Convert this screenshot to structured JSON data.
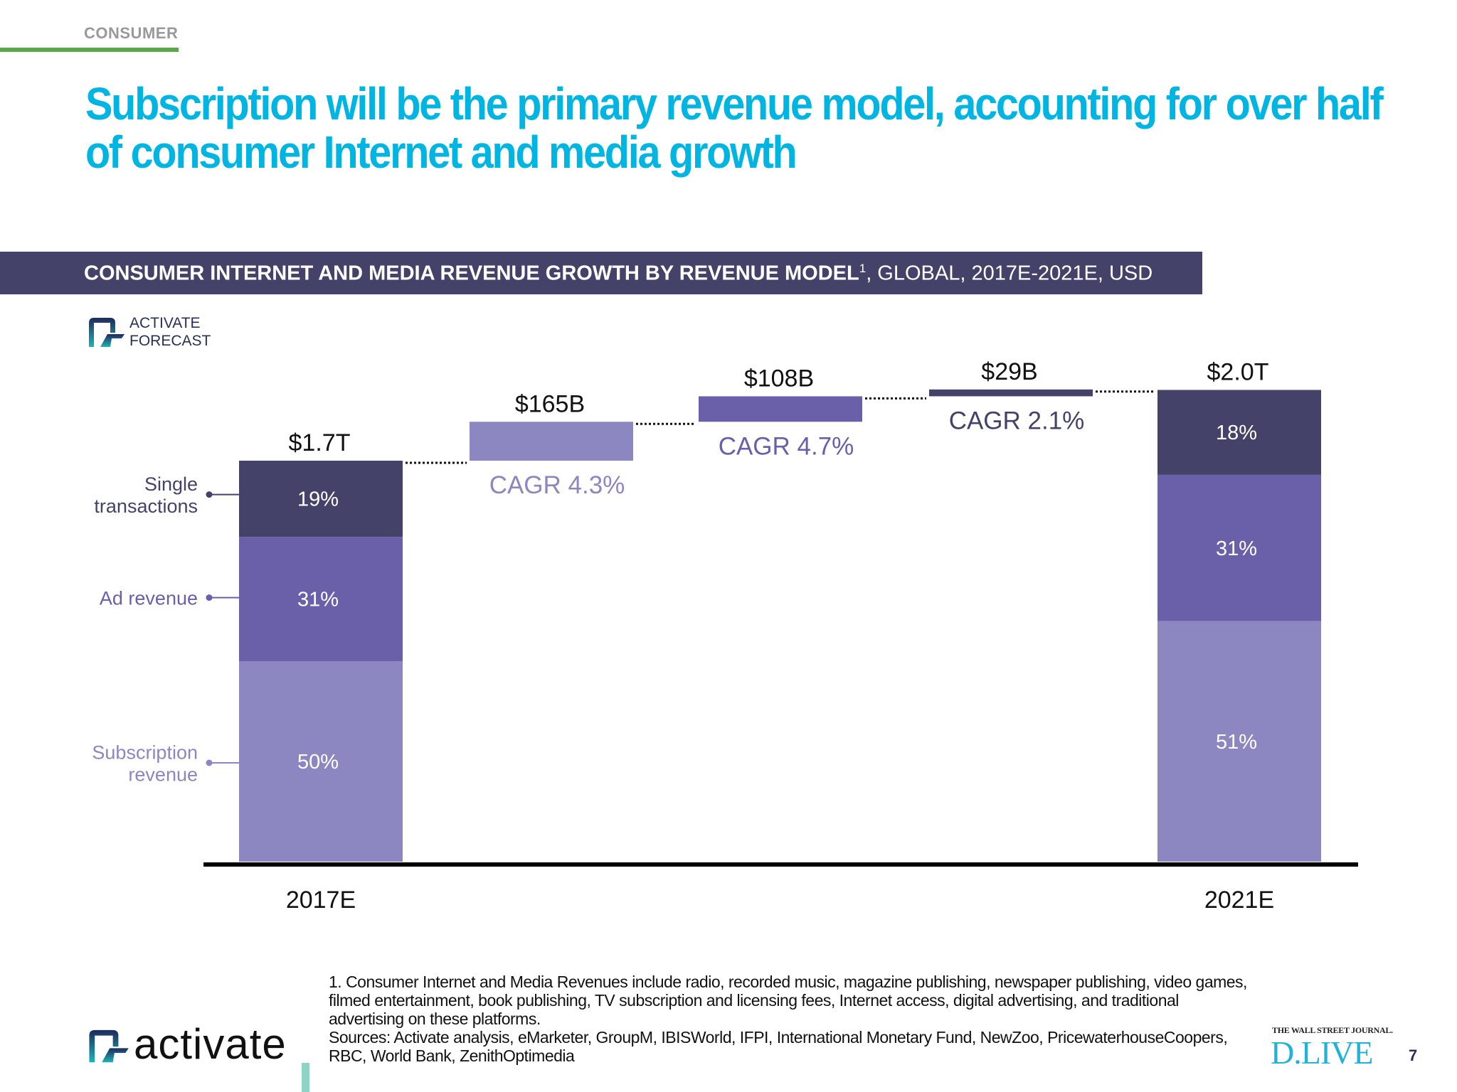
{
  "header": {
    "section": "CONSUMER",
    "title": "Subscription will be the primary revenue model, accounting for over half of consumer Internet and media growth"
  },
  "banner": {
    "bold": "CONSUMER INTERNET AND MEDIA REVENUE GROWTH BY REVENUE MODEL",
    "footnote_ref": "1",
    "rest": ", GLOBAL, 2017E-2021E, USD"
  },
  "forecast_logo": {
    "line1": "ACTIVATE",
    "line2": "FORECAST"
  },
  "colors": {
    "title": "#00b5e2",
    "banner": "#45426a",
    "single_transactions": "#45426a",
    "ad_revenue": "#6a60aa",
    "subscription_revenue": "#8c86c1",
    "section_line": "#5aa84a"
  },
  "chart_data": {
    "type": "waterfall",
    "unit": "USD (billions)",
    "legend_labels": [
      {
        "lines": [
          "Single",
          "transactions"
        ],
        "color": "#45426a"
      },
      {
        "lines": [
          "Ad revenue"
        ],
        "color": "#6a60aa"
      },
      {
        "lines": [
          "Subscription",
          "revenue"
        ],
        "color": "#8c86c1"
      }
    ],
    "bars": [
      {
        "kind": "total",
        "x_label": "2017E",
        "value": 1700,
        "label": "$1.7T",
        "segments": [
          {
            "model": "Subscription revenue",
            "share": 50,
            "label": "50%"
          },
          {
            "model": "Ad revenue",
            "share": 31,
            "label": "31%"
          },
          {
            "model": "Single transactions",
            "share": 19,
            "label": "19%"
          }
        ]
      },
      {
        "kind": "increment",
        "model": "Subscription revenue",
        "value": 165,
        "label": "$165B",
        "cagr": "CAGR 4.3%"
      },
      {
        "kind": "increment",
        "model": "Ad revenue",
        "value": 108,
        "label": "$108B",
        "cagr": "CAGR 4.7%"
      },
      {
        "kind": "increment",
        "model": "Single transactions",
        "value": 29,
        "label": "$29B",
        "cagr": "CAGR 2.1%"
      },
      {
        "kind": "total",
        "x_label": "2021E",
        "value": 2000,
        "label": "$2.0T",
        "segments": [
          {
            "model": "Subscription revenue",
            "share": 51,
            "label": "51%"
          },
          {
            "model": "Ad revenue",
            "share": 31,
            "label": "31%"
          },
          {
            "model": "Single transactions",
            "share": 18,
            "label": "18%"
          }
        ]
      }
    ]
  },
  "footer": {
    "note": "1. Consumer Internet and Media Revenues include radio, recorded music, magazine publishing, newspaper publishing, video games, filmed entertainment, book publishing, TV subscription and licensing fees, Internet access, digital advertising, and traditional advertising on these platforms.",
    "sources": "Sources: Activate analysis, eMarketer, GroupM, IBISWorld, IFPI, International Monetary Fund, NewZoo, PricewaterhouseCoopers, RBC, World Bank, ZenithOptimedia",
    "logo": "activate",
    "partner_top": "THE WALL STREET JOURNAL.",
    "partner_main": "D.LIVE",
    "page": "7"
  }
}
